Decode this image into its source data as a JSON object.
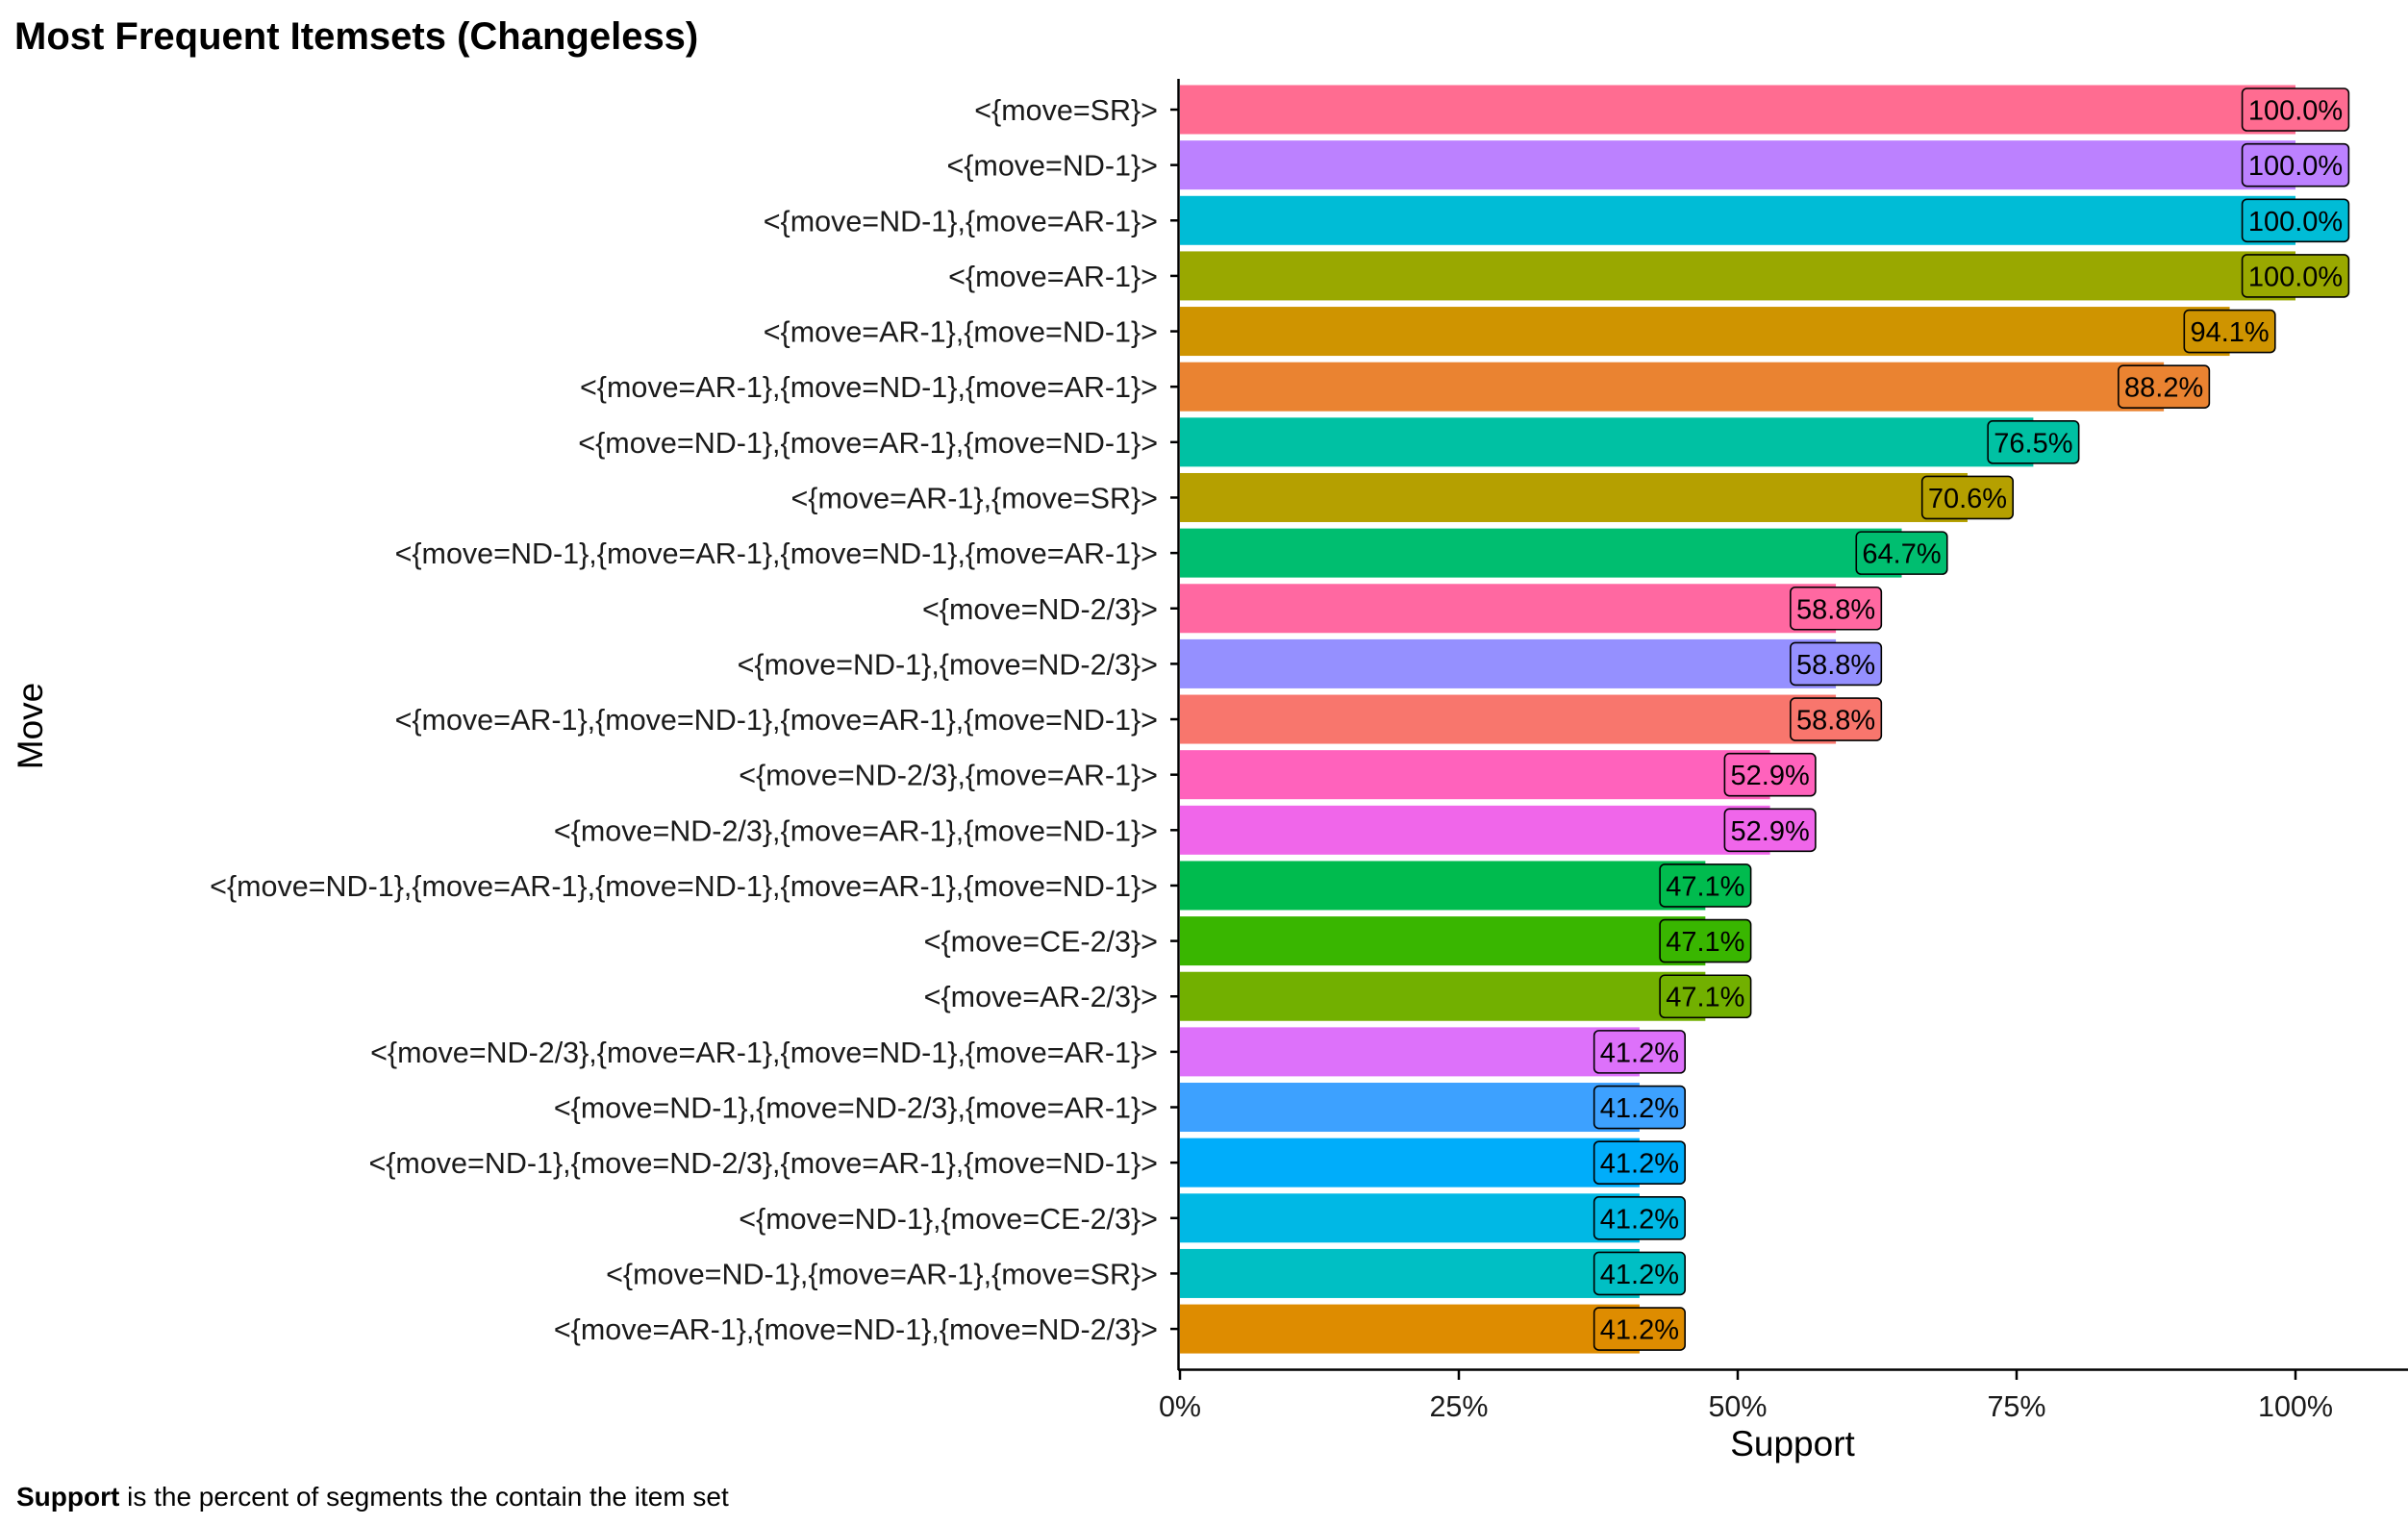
{
  "chart_data": {
    "type": "bar",
    "orientation": "horizontal",
    "title": "Most Frequent Itemsets (Changeless)",
    "xlabel": "Support",
    "ylabel": "Move",
    "xlim": [
      0,
      1
    ],
    "x_ticks": [
      "0%",
      "25%",
      "50%",
      "75%",
      "100%"
    ],
    "x_tick_values": [
      0,
      0.25,
      0.5,
      0.75,
      1.0
    ],
    "grid": false,
    "legend": "none",
    "categories": [
      "<{move=SR}>",
      "<{move=ND-1}>",
      "<{move=ND-1},{move=AR-1}>",
      "<{move=AR-1}>",
      "<{move=AR-1},{move=ND-1}>",
      "<{move=AR-1},{move=ND-1},{move=AR-1}>",
      "<{move=ND-1},{move=AR-1},{move=ND-1}>",
      "<{move=AR-1},{move=SR}>",
      "<{move=ND-1},{move=AR-1},{move=ND-1},{move=AR-1}>",
      "<{move=ND-2/3}>",
      "<{move=ND-1},{move=ND-2/3}>",
      "<{move=AR-1},{move=ND-1},{move=AR-1},{move=ND-1}>",
      "<{move=ND-2/3},{move=AR-1}>",
      "<{move=ND-2/3},{move=AR-1},{move=ND-1}>",
      "<{move=ND-1},{move=AR-1},{move=ND-1},{move=AR-1},{move=ND-1}>",
      "<{move=CE-2/3}>",
      "<{move=AR-2/3}>",
      "<{move=ND-2/3},{move=AR-1},{move=ND-1},{move=AR-1}>",
      "<{move=ND-1},{move=ND-2/3},{move=AR-1}>",
      "<{move=ND-1},{move=ND-2/3},{move=AR-1},{move=ND-1}>",
      "<{move=ND-1},{move=CE-2/3}>",
      "<{move=ND-1},{move=AR-1},{move=SR}>",
      "<{move=AR-1},{move=ND-1},{move=ND-2/3}>"
    ],
    "values": [
      1.0,
      1.0,
      1.0,
      1.0,
      0.941,
      0.882,
      0.765,
      0.706,
      0.647,
      0.588,
      0.588,
      0.588,
      0.529,
      0.529,
      0.471,
      0.471,
      0.471,
      0.412,
      0.412,
      0.412,
      0.412,
      0.412,
      0.412
    ],
    "data_labels": [
      "100.0%",
      "100.0%",
      "100.0%",
      "100.0%",
      "94.1%",
      "88.2%",
      "76.5%",
      "70.6%",
      "64.7%",
      "58.8%",
      "58.8%",
      "58.8%",
      "52.9%",
      "52.9%",
      "47.1%",
      "47.1%",
      "47.1%",
      "41.2%",
      "41.2%",
      "41.2%",
      "41.2%",
      "41.2%",
      "41.2%"
    ],
    "colors": [
      "#FF6C91",
      "#BC81FF",
      "#00BCD6",
      "#99A800",
      "#CF9400",
      "#EA8331",
      "#00C1A3",
      "#B5A000",
      "#00BE70",
      "#FF68A1",
      "#9590FF",
      "#F8766D",
      "#FF62BC",
      "#F066EA",
      "#00BB4E",
      "#39B600",
      "#72B000",
      "#DD71FA",
      "#3DA1FF",
      "#00ADFA",
      "#00B8E5",
      "#00BFC4",
      "#DE8C00"
    ]
  },
  "caption": {
    "bold": "Support",
    "rest": " is the percent of segments the contain the item set"
  }
}
